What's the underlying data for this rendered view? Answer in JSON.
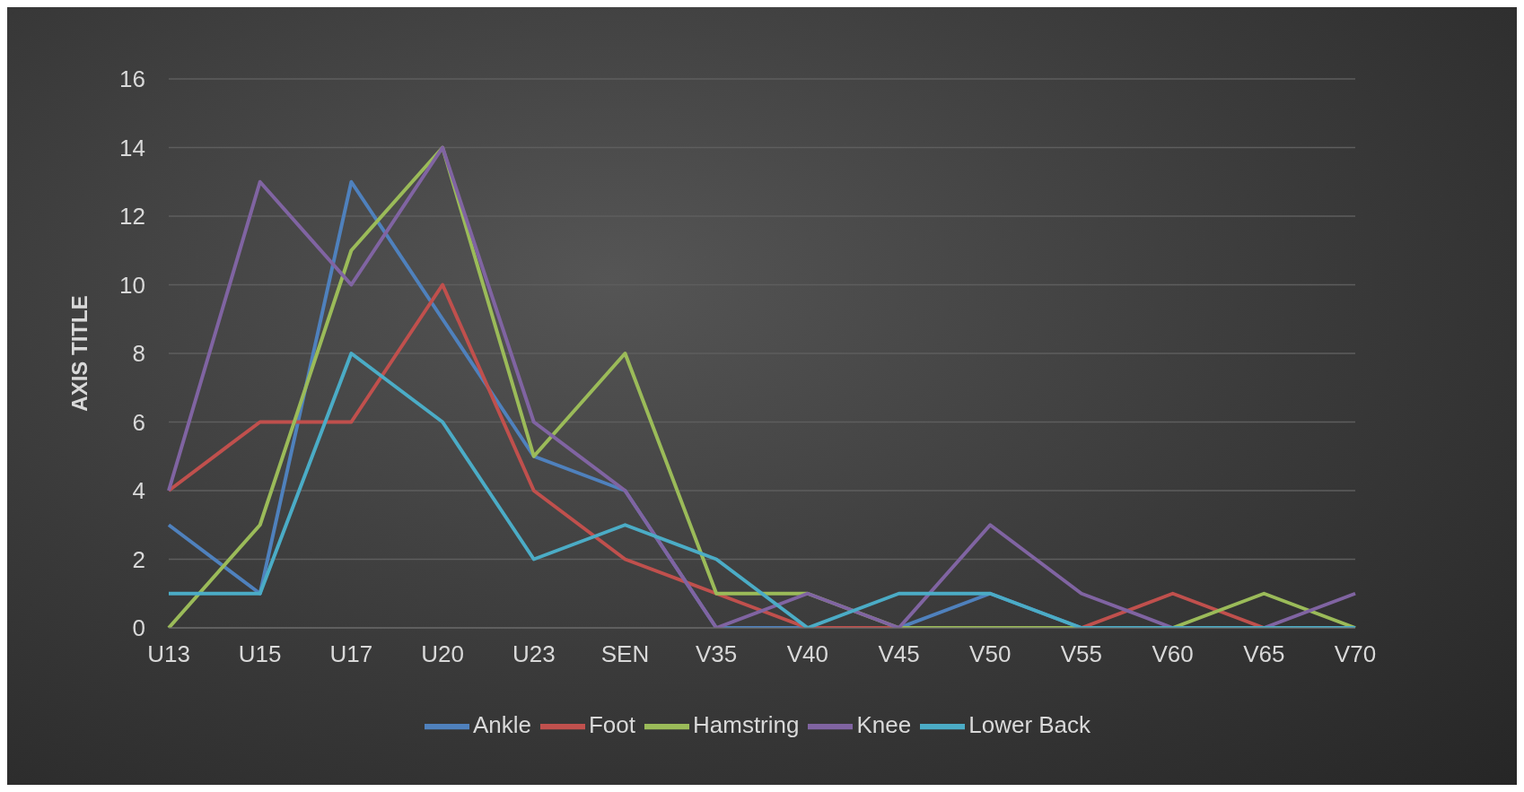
{
  "chart_data": {
    "type": "line",
    "ylabel": "AXIS TITLE",
    "categories": [
      "U13",
      "U15",
      "U17",
      "U20",
      "U23",
      "SEN",
      "V35",
      "V40",
      "V45",
      "V50",
      "V55",
      "V60",
      "V65",
      "V70"
    ],
    "series": [
      {
        "name": "Ankle",
        "color": "#4f81bd",
        "values": [
          3,
          1,
          13,
          9,
          5,
          4,
          0,
          0,
          0,
          1,
          0,
          0,
          0,
          0
        ]
      },
      {
        "name": "Foot",
        "color": "#c0504d",
        "values": [
          4,
          6,
          6,
          10,
          4,
          2,
          1,
          0,
          0,
          0,
          0,
          1,
          0,
          0
        ]
      },
      {
        "name": "Hamstring",
        "color": "#9bbb59",
        "values": [
          0,
          3,
          11,
          14,
          5,
          8,
          1,
          1,
          0,
          0,
          0,
          0,
          1,
          0
        ]
      },
      {
        "name": "Knee",
        "color": "#8064a2",
        "values": [
          4,
          13,
          10,
          14,
          6,
          4,
          0,
          1,
          0,
          3,
          1,
          0,
          0,
          1
        ]
      },
      {
        "name": "Lower Back",
        "color": "#4bacc6",
        "values": [
          1,
          1,
          8,
          6,
          2,
          3,
          2,
          0,
          1,
          1,
          0,
          0,
          0,
          0
        ]
      }
    ],
    "ylim": [
      0,
      16
    ],
    "yticks": [
      0,
      2,
      4,
      6,
      8,
      10,
      12,
      14,
      16
    ],
    "grid": "y",
    "legend": "bottom",
    "marker": "none",
    "line_style": "solid"
  }
}
